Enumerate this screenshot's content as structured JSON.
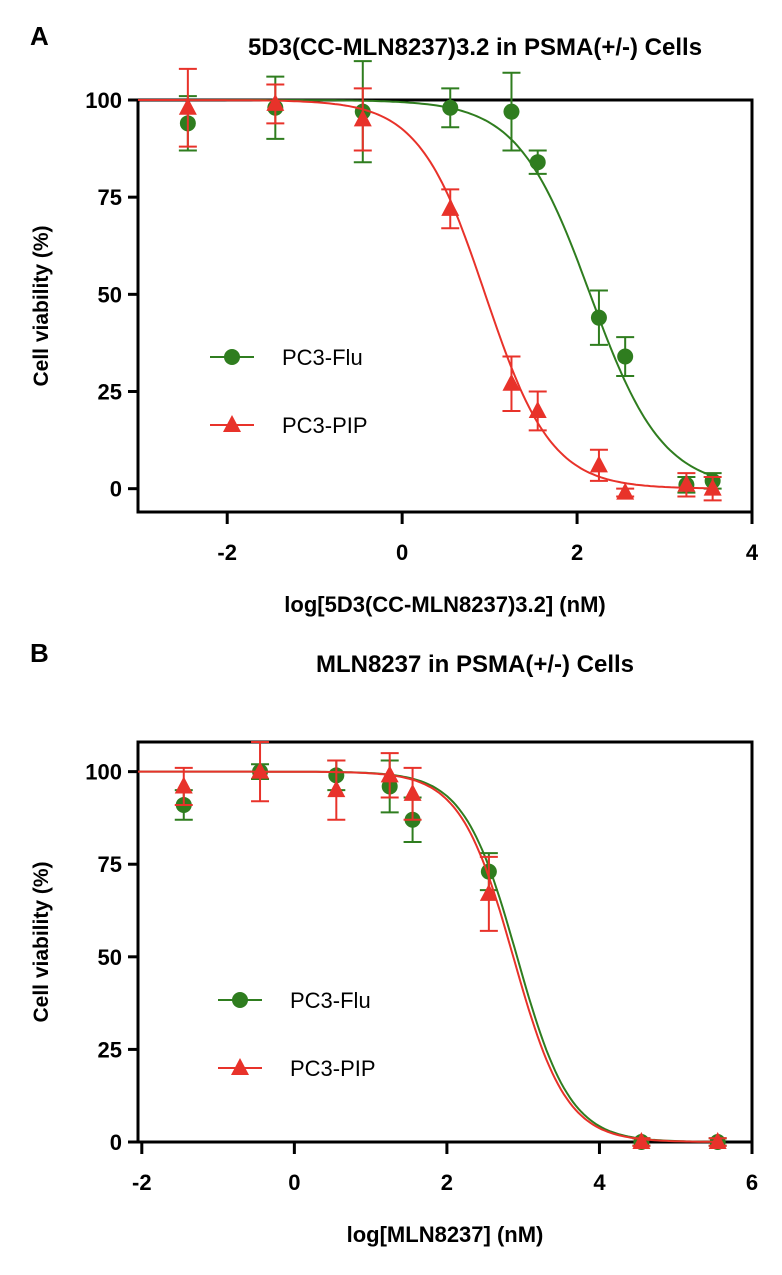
{
  "colors": {
    "PC3-Flu": "#2f7d1f",
    "PC3-PIP": "#e8322a"
  },
  "chart_data": [
    {
      "panel_label": "A",
      "type": "scatter",
      "title": "5D3(CC-MLN8237)3.2 in PSMA(+/-) Cells",
      "xlabel": "log[5D3(CC-MLN8237)3.2] (nM)",
      "ylabel": "Cell viability (%)",
      "xlim": [
        -3.02,
        4
      ],
      "ylim": [
        -6,
        100
      ],
      "xticks": [
        "-2",
        "0",
        "2",
        "4"
      ],
      "yticks": [
        "0",
        "25",
        "50",
        "75",
        "100"
      ],
      "grid": false,
      "legend": "center-left",
      "fit": "sigmoidal dose-response",
      "series": [
        {
          "name": "PC3-Flu",
          "marker": "circle",
          "x": [
            -2.45,
            -1.45,
            -0.45,
            0.55,
            1.25,
            1.55,
            2.25,
            2.55,
            3.25,
            3.55
          ],
          "y": [
            94,
            98,
            97,
            98,
            97,
            84,
            44,
            34,
            1,
            2
          ],
          "err": [
            7,
            8,
            13,
            5,
            10,
            3,
            7,
            5,
            2,
            2
          ],
          "fit_logIC50": 2.15,
          "fit_hill": 1.05
        },
        {
          "name": "PC3-PIP",
          "marker": "triangle",
          "x": [
            -2.45,
            -1.45,
            -0.45,
            0.55,
            1.25,
            1.55,
            2.25,
            2.55,
            3.25,
            3.55
          ],
          "y": [
            98,
            99,
            95,
            72,
            27,
            20,
            6,
            -1,
            1,
            0
          ],
          "err": [
            10,
            5,
            8,
            5,
            7,
            5,
            4,
            1,
            3,
            3
          ],
          "fit_logIC50": 0.95,
          "fit_hill": 1.15
        }
      ]
    },
    {
      "panel_label": "B",
      "type": "scatter",
      "title": "MLN8237 in PSMA(+/-) Cells",
      "xlabel": "log[MLN8237] (nM)",
      "ylabel": "Cell viability (%)",
      "xlim": [
        -2.05,
        6
      ],
      "ylim": [
        0,
        108
      ],
      "xticks": [
        "-2",
        "0",
        "2",
        "4",
        "6"
      ],
      "yticks": [
        "0",
        "25",
        "50",
        "75",
        "100"
      ],
      "grid": false,
      "legend": "center-left",
      "fit": "sigmoidal dose-response",
      "series": [
        {
          "name": "PC3-Flu",
          "marker": "circle",
          "x": [
            -1.45,
            -0.45,
            0.55,
            1.25,
            1.55,
            2.55,
            4.55,
            5.55
          ],
          "y": [
            91,
            100,
            99,
            96,
            87,
            73,
            0,
            0
          ],
          "err": [
            4,
            2,
            4,
            7,
            6,
            5,
            1,
            1
          ],
          "fit_logIC50": 2.92,
          "fit_hill": 1.25
        },
        {
          "name": "PC3-PIP",
          "marker": "triangle",
          "x": [
            -1.45,
            -0.45,
            0.55,
            1.25,
            1.55,
            2.55,
            4.55,
            5.55
          ],
          "y": [
            96,
            100,
            95,
            99,
            94,
            67,
            0,
            0
          ],
          "err": [
            5,
            8,
            8,
            6,
            7,
            10,
            1,
            1
          ],
          "fit_logIC50": 2.87,
          "fit_hill": 1.25
        }
      ]
    }
  ]
}
